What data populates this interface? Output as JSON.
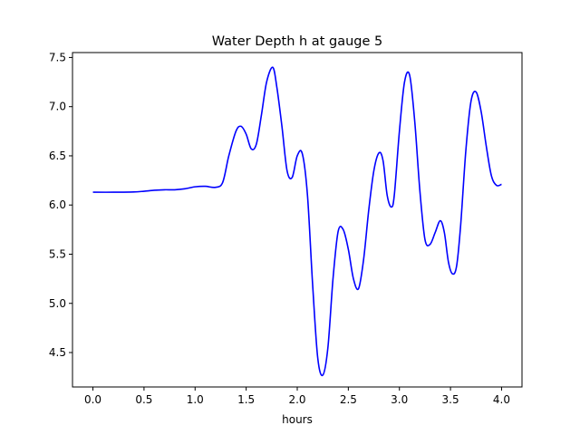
{
  "chart_data": {
    "type": "line",
    "title": "Water Depth h at gauge 5",
    "xlabel": "hours",
    "ylabel": "",
    "xlim": [
      -0.2,
      4.2
    ],
    "ylim": [
      4.15,
      7.55
    ],
    "xticks": [
      0.0,
      0.5,
      1.0,
      1.5,
      2.0,
      2.5,
      3.0,
      3.5,
      4.0
    ],
    "xtick_labels": [
      "0.0",
      "0.5",
      "1.0",
      "1.5",
      "2.0",
      "2.5",
      "3.0",
      "3.5",
      "4.0"
    ],
    "yticks": [
      4.5,
      5.0,
      5.5,
      6.0,
      6.5,
      7.0,
      7.5
    ],
    "ytick_labels": [
      "4.5",
      "5.0",
      "5.5",
      "6.0",
      "6.5",
      "7.0",
      "7.5"
    ],
    "grid": false,
    "legend": "none",
    "series": [
      {
        "color": "#0000ff",
        "x": [
          0.0,
          0.2,
          0.4,
          0.5,
          0.6,
          0.7,
          0.8,
          0.9,
          1.0,
          1.1,
          1.2,
          1.27,
          1.33,
          1.4,
          1.45,
          1.5,
          1.55,
          1.6,
          1.65,
          1.7,
          1.76,
          1.8,
          1.85,
          1.9,
          1.95,
          2.0,
          2.05,
          2.1,
          2.15,
          2.2,
          2.25,
          2.3,
          2.35,
          2.4,
          2.45,
          2.5,
          2.55,
          2.6,
          2.65,
          2.7,
          2.75,
          2.8,
          2.84,
          2.88,
          2.92,
          2.95,
          3.0,
          3.05,
          3.1,
          3.15,
          3.2,
          3.25,
          3.3,
          3.35,
          3.4,
          3.44,
          3.48,
          3.52,
          3.56,
          3.6,
          3.65,
          3.7,
          3.75,
          3.8,
          3.85,
          3.9,
          3.95,
          4.0
        ],
        "y": [
          6.13,
          6.13,
          6.133,
          6.14,
          6.15,
          6.155,
          6.155,
          6.165,
          6.185,
          6.19,
          6.18,
          6.23,
          6.5,
          6.75,
          6.8,
          6.72,
          6.57,
          6.62,
          6.92,
          7.25,
          7.4,
          7.2,
          6.8,
          6.35,
          6.28,
          6.5,
          6.52,
          6.1,
          5.2,
          4.45,
          4.27,
          4.55,
          5.25,
          5.73,
          5.75,
          5.55,
          5.25,
          5.15,
          5.45,
          5.95,
          6.35,
          6.53,
          6.45,
          6.1,
          5.98,
          6.1,
          6.75,
          7.25,
          7.32,
          6.85,
          6.15,
          5.65,
          5.6,
          5.72,
          5.84,
          5.72,
          5.42,
          5.3,
          5.38,
          5.8,
          6.55,
          7.05,
          7.15,
          6.95,
          6.6,
          6.3,
          6.2,
          6.21
        ]
      }
    ]
  }
}
